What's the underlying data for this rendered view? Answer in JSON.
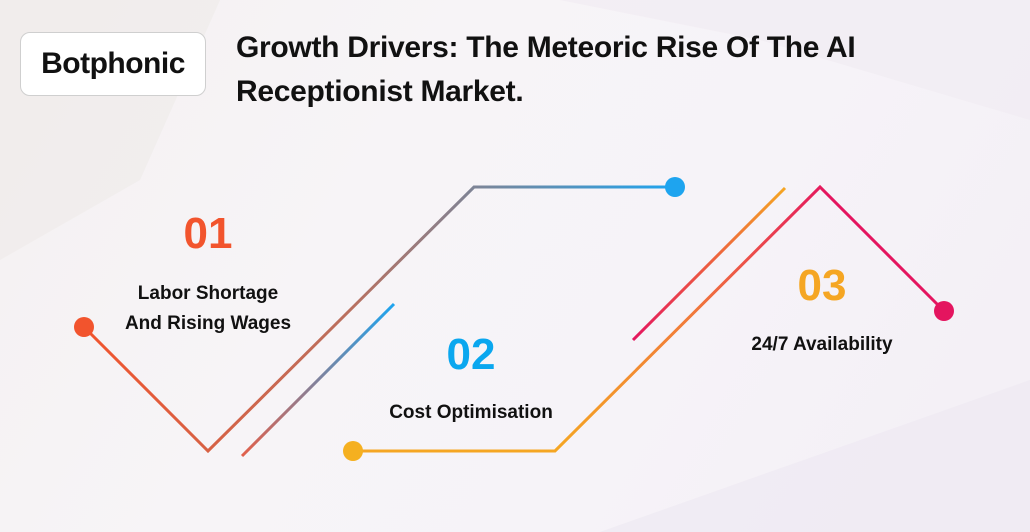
{
  "logo": {
    "text": "Botphonic"
  },
  "title": "Growth Drivers: The Meteoric Rise Of The AI Receptionist Market.",
  "steps": [
    {
      "number": "01",
      "label_line1": "Labor Shortage",
      "label_line2": "And Rising Wages",
      "color": "#f2542d"
    },
    {
      "number": "02",
      "label_line1": "Cost Optimisation",
      "label_line2": "",
      "color": "#0aa7ef"
    },
    {
      "number": "03",
      "label_line1": "24/7 Availability",
      "label_line2": "",
      "color": "#f5a623"
    }
  ],
  "colors": {
    "orange_red": "#f2542d",
    "blue": "#1ea4ef",
    "amber": "#f5a623",
    "magenta": "#e4155f"
  }
}
